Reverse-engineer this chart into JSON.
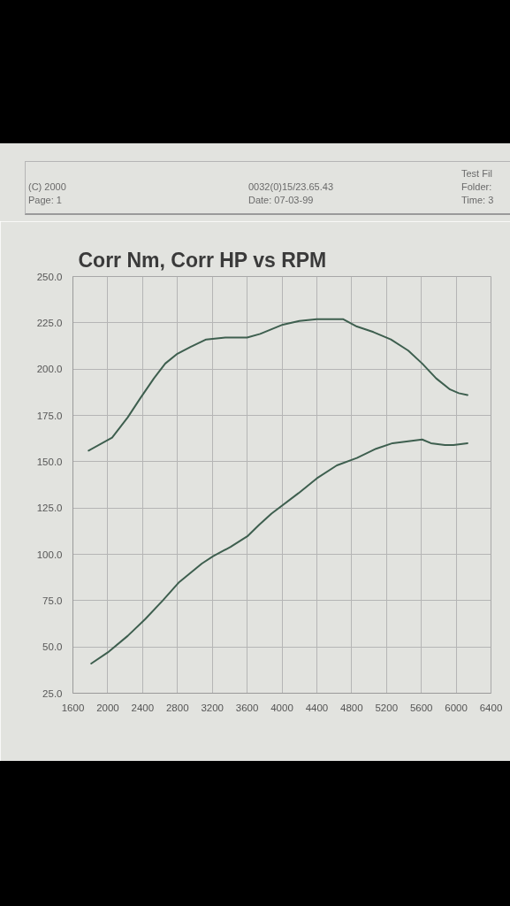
{
  "chart_data": {
    "type": "line",
    "title": "Corr Nm, Corr HP vs RPM",
    "annotations": [
      "(C) 2000",
      "Page: 1",
      "0032(0)15/23.65.43",
      "Date: 07-03-99",
      "Test Fil",
      "Folder:",
      "Time: 3"
    ],
    "series": [
      {
        "color": "#3e5f4f",
        "x": [
          1780,
          2050,
          2230,
          2370,
          2530,
          2660,
          2790,
          2950,
          3130,
          3350,
          3600,
          3750,
          4010,
          4200,
          4400,
          4630,
          4700,
          4860,
          5050,
          5250,
          5450,
          5610,
          5770,
          5930,
          6030,
          6130
        ],
        "values": [
          156,
          163,
          174,
          184,
          195,
          203,
          208,
          212,
          216,
          217,
          217,
          219,
          224,
          226,
          227,
          227,
          227,
          223,
          220,
          216,
          210,
          203,
          195,
          189,
          187,
          186
        ]
      },
      {
        "color": "#3e5f4f",
        "x": [
          1810,
          2000,
          2230,
          2430,
          2630,
          2820,
          3080,
          3210,
          3410,
          3610,
          3740,
          3880,
          4190,
          4400,
          4630,
          4860,
          5080,
          5270,
          5450,
          5610,
          5710,
          5870,
          5970,
          6130
        ],
        "values": [
          41,
          47,
          56,
          65,
          75,
          85,
          95,
          99,
          104,
          110,
          116,
          122,
          133,
          141,
          148,
          152,
          157,
          160,
          161,
          162,
          160,
          159,
          159,
          160
        ]
      }
    ],
    "xlim": [
      1600,
      6400
    ],
    "ylim": [
      25,
      250
    ],
    "xticks": [
      1600,
      2000,
      2400,
      2800,
      3200,
      3600,
      4000,
      4400,
      4800,
      5200,
      5600,
      6000,
      6400
    ],
    "yticks": [
      {
        "value": 25,
        "label": "25.0"
      },
      {
        "value": 50,
        "label": "50.0"
      },
      {
        "value": 75,
        "label": "75.0"
      },
      {
        "value": 100,
        "label": "100.0"
      },
      {
        "value": 125,
        "label": "125.0"
      },
      {
        "value": 150,
        "label": "150.0"
      },
      {
        "value": 175,
        "label": "175.0"
      },
      {
        "value": 200,
        "label": "200.0"
      },
      {
        "value": 225,
        "label": "225.0"
      },
      {
        "value": 250,
        "label": "250.0"
      }
    ],
    "grid": true
  }
}
